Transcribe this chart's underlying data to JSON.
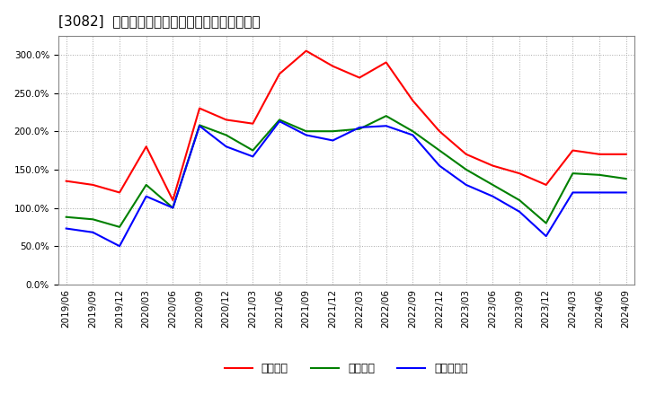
{
  "title": "[3082]  流動比率、当座比率、現預金比率の推移",
  "x_labels": [
    "2019/06",
    "2019/09",
    "2019/12",
    "2020/03",
    "2020/06",
    "2020/09",
    "2020/12",
    "2021/03",
    "2021/06",
    "2021/09",
    "2021/12",
    "2022/03",
    "2022/06",
    "2022/09",
    "2022/12",
    "2023/03",
    "2023/06",
    "2023/09",
    "2023/12",
    "2024/03",
    "2024/06",
    "2024/09"
  ],
  "ryudo": [
    135,
    130,
    120,
    180,
    110,
    230,
    215,
    210,
    275,
    305,
    285,
    270,
    290,
    240,
    200,
    170,
    155,
    145,
    130,
    175,
    170,
    170
  ],
  "toza": [
    88,
    85,
    75,
    130,
    100,
    208,
    195,
    175,
    215,
    200,
    200,
    203,
    220,
    200,
    175,
    150,
    130,
    110,
    80,
    145,
    143,
    138
  ],
  "genyo": [
    73,
    68,
    50,
    115,
    100,
    207,
    180,
    167,
    213,
    195,
    188,
    205,
    207,
    195,
    155,
    130,
    115,
    95,
    63,
    120,
    120,
    120
  ],
  "ryudo_color": "#ff0000",
  "toza_color": "#008000",
  "genyo_color": "#0000ff",
  "ylim": [
    0,
    325
  ],
  "yticks": [
    0,
    50,
    100,
    150,
    200,
    250,
    300
  ],
  "legend_labels": [
    "流動比率",
    "当座比率",
    "現預金比率"
  ],
  "bg_color": "#ffffff",
  "plot_bg_color": "#ffffff",
  "grid_color": "#aaaaaa",
  "title_fontsize": 11,
  "axis_fontsize": 7.5,
  "legend_fontsize": 9
}
